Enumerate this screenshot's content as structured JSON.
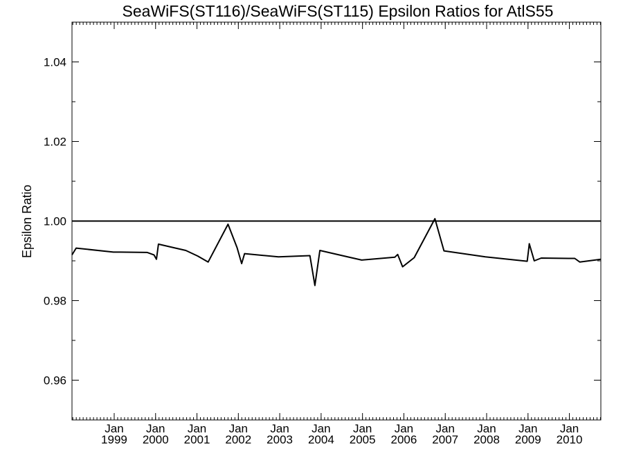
{
  "chart_data": {
    "type": "line",
    "title": "SeaWiFS(ST116)/SeaWiFS(ST115)  Epsilon Ratios for AtlS55",
    "xlabel": "",
    "ylabel": "Epsilon Ratio",
    "xlim": [
      1997.98,
      2010.76
    ],
    "ylim": [
      0.95,
      1.05
    ],
    "x_ticks": [
      {
        "month": "Jan",
        "year": "1999",
        "x": 1999.0
      },
      {
        "month": "Jan",
        "year": "2000",
        "x": 2000.0
      },
      {
        "month": "Jan",
        "year": "2001",
        "x": 2001.0
      },
      {
        "month": "Jan",
        "year": "2002",
        "x": 2002.0
      },
      {
        "month": "Jan",
        "year": "2003",
        "x": 2003.0
      },
      {
        "month": "Jan",
        "year": "2004",
        "x": 2004.0
      },
      {
        "month": "Jan",
        "year": "2005",
        "x": 2005.0
      },
      {
        "month": "Jan",
        "year": "2006",
        "x": 2006.0
      },
      {
        "month": "Jan",
        "year": "2007",
        "x": 2007.0
      },
      {
        "month": "Jan",
        "year": "2008",
        "x": 2008.0
      },
      {
        "month": "Jan",
        "year": "2009",
        "x": 2009.0
      },
      {
        "month": "Jan",
        "year": "2010",
        "x": 2010.0
      }
    ],
    "y_ticks": [
      {
        "label": "0.96",
        "value": 0.96
      },
      {
        "label": "0.98",
        "value": 0.98
      },
      {
        "label": "1.00",
        "value": 1.0
      },
      {
        "label": "1.02",
        "value": 1.02
      },
      {
        "label": "1.04",
        "value": 1.04
      }
    ],
    "reference_line": 1.0,
    "grid": false,
    "series": [
      {
        "x": [
          1997.98,
          1998.08,
          1998.98,
          1999.15,
          1999.8,
          1999.96,
          2000.02,
          2000.07,
          2000.73,
          2001.02,
          2001.27,
          2001.75,
          2001.97,
          2002.08,
          2002.15,
          2002.97,
          2003.73,
          2003.85,
          2003.97,
          2004.98,
          2005.78,
          2005.85,
          2005.97,
          2006.25,
          2006.75,
          2006.97,
          2007.97,
          2008.98,
          2009.02,
          2009.03,
          2009.15,
          2009.32,
          2009.98,
          2010.13,
          2010.25,
          2010.76
        ],
        "y": [
          0.9915,
          0.9932,
          0.9922,
          0.9922,
          0.9921,
          0.9915,
          0.9904,
          0.9942,
          0.9926,
          0.9912,
          0.9897,
          0.9992,
          0.9933,
          0.9893,
          0.9918,
          0.991,
          0.9913,
          0.9838,
          0.9926,
          0.9902,
          0.9909,
          0.9916,
          0.9885,
          0.9908,
          1.0006,
          0.9925,
          0.991,
          0.9899,
          0.9933,
          0.9943,
          0.99,
          0.9907,
          0.9906,
          0.9906,
          0.9897,
          0.9904
        ]
      }
    ]
  }
}
